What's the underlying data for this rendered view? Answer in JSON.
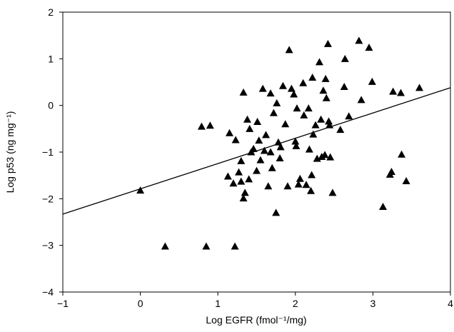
{
  "chart_data": {
    "type": "scatter",
    "title": "",
    "xlabel": "Log EGFR (fmol⁻¹/mg)",
    "ylabel": "Log p53 (ng mg⁻¹)",
    "xlim": [
      -1,
      4
    ],
    "ylim": [
      -4,
      2
    ],
    "x_ticks": [
      -1,
      0,
      1,
      2,
      3,
      4
    ],
    "y_ticks": [
      -4,
      -3,
      -2,
      -1,
      0,
      1,
      2
    ],
    "x_tick_labels": [
      "−1",
      "0",
      "1",
      "2",
      "3",
      "4"
    ],
    "y_tick_labels": [
      "−4",
      "−3",
      "−2",
      "−1",
      "0",
      "1",
      "2"
    ],
    "grid": false,
    "marker": "filled-triangle",
    "marker_color": "#000000",
    "regression_line": {
      "x": [
        -1,
        4
      ],
      "y": [
        -2.33,
        0.38
      ]
    },
    "points": [
      {
        "x": 0.0,
        "y": -1.82
      },
      {
        "x": 0.32,
        "y": -3.02
      },
      {
        "x": 0.79,
        "y": -0.45
      },
      {
        "x": 0.85,
        "y": -3.02
      },
      {
        "x": 0.9,
        "y": -0.43
      },
      {
        "x": 1.13,
        "y": -1.52
      },
      {
        "x": 1.15,
        "y": -0.59
      },
      {
        "x": 1.2,
        "y": -1.67
      },
      {
        "x": 1.22,
        "y": -3.02
      },
      {
        "x": 1.23,
        "y": -0.74
      },
      {
        "x": 1.27,
        "y": -1.43
      },
      {
        "x": 1.3,
        "y": -1.63
      },
      {
        "x": 1.3,
        "y": -1.19
      },
      {
        "x": 1.33,
        "y": -1.99
      },
      {
        "x": 1.33,
        "y": 0.28
      },
      {
        "x": 1.35,
        "y": -1.87
      },
      {
        "x": 1.38,
        "y": -0.3
      },
      {
        "x": 1.4,
        "y": -1.58
      },
      {
        "x": 1.41,
        "y": -0.5
      },
      {
        "x": 1.43,
        "y": -1.0
      },
      {
        "x": 1.46,
        "y": -0.93
      },
      {
        "x": 1.5,
        "y": -1.4
      },
      {
        "x": 1.51,
        "y": -0.35
      },
      {
        "x": 1.53,
        "y": -0.75
      },
      {
        "x": 1.55,
        "y": -1.17
      },
      {
        "x": 1.58,
        "y": 0.36
      },
      {
        "x": 1.6,
        "y": -0.97
      },
      {
        "x": 1.62,
        "y": -0.63
      },
      {
        "x": 1.65,
        "y": -1.73
      },
      {
        "x": 1.68,
        "y": -1.0
      },
      {
        "x": 1.68,
        "y": 0.26
      },
      {
        "x": 1.7,
        "y": -1.34
      },
      {
        "x": 1.72,
        "y": -0.16
      },
      {
        "x": 1.75,
        "y": -2.3
      },
      {
        "x": 1.76,
        "y": 0.05
      },
      {
        "x": 1.78,
        "y": -0.79
      },
      {
        "x": 1.8,
        "y": -1.13
      },
      {
        "x": 1.81,
        "y": -0.89
      },
      {
        "x": 1.84,
        "y": 0.42
      },
      {
        "x": 1.87,
        "y": -0.4
      },
      {
        "x": 1.9,
        "y": -1.73
      },
      {
        "x": 1.92,
        "y": 1.19
      },
      {
        "x": 1.95,
        "y": 0.36
      },
      {
        "x": 1.98,
        "y": 0.24
      },
      {
        "x": 2.0,
        "y": -0.77
      },
      {
        "x": 2.01,
        "y": -0.87
      },
      {
        "x": 2.02,
        "y": -0.06
      },
      {
        "x": 2.04,
        "y": -1.69
      },
      {
        "x": 2.06,
        "y": -1.57
      },
      {
        "x": 2.1,
        "y": 0.48
      },
      {
        "x": 2.11,
        "y": -0.21
      },
      {
        "x": 2.14,
        "y": -1.7
      },
      {
        "x": 2.17,
        "y": -0.06
      },
      {
        "x": 2.18,
        "y": -0.94
      },
      {
        "x": 2.2,
        "y": -1.83
      },
      {
        "x": 2.21,
        "y": -1.49
      },
      {
        "x": 2.22,
        "y": 0.6
      },
      {
        "x": 2.23,
        "y": -0.62
      },
      {
        "x": 2.26,
        "y": -0.42
      },
      {
        "x": 2.28,
        "y": -1.14
      },
      {
        "x": 2.31,
        "y": 0.93
      },
      {
        "x": 2.33,
        "y": -0.3
      },
      {
        "x": 2.34,
        "y": -1.1
      },
      {
        "x": 2.36,
        "y": 0.32
      },
      {
        "x": 2.38,
        "y": -1.06
      },
      {
        "x": 2.39,
        "y": 0.57
      },
      {
        "x": 2.4,
        "y": 0.16
      },
      {
        "x": 2.42,
        "y": 1.32
      },
      {
        "x": 2.43,
        "y": -0.34
      },
      {
        "x": 2.44,
        "y": -0.42
      },
      {
        "x": 2.45,
        "y": -1.11
      },
      {
        "x": 2.48,
        "y": -1.87
      },
      {
        "x": 2.58,
        "y": -0.52
      },
      {
        "x": 2.63,
        "y": 0.4
      },
      {
        "x": 2.64,
        "y": 1.0
      },
      {
        "x": 2.69,
        "y": -0.23
      },
      {
        "x": 2.82,
        "y": 1.39
      },
      {
        "x": 2.85,
        "y": 0.12
      },
      {
        "x": 2.95,
        "y": 1.24
      },
      {
        "x": 2.99,
        "y": 0.51
      },
      {
        "x": 3.13,
        "y": -2.17
      },
      {
        "x": 3.22,
        "y": -1.48
      },
      {
        "x": 3.24,
        "y": -1.42
      },
      {
        "x": 3.26,
        "y": 0.3
      },
      {
        "x": 3.36,
        "y": 0.27
      },
      {
        "x": 3.37,
        "y": -1.05
      },
      {
        "x": 3.43,
        "y": -1.62
      },
      {
        "x": 3.6,
        "y": 0.38
      }
    ]
  }
}
